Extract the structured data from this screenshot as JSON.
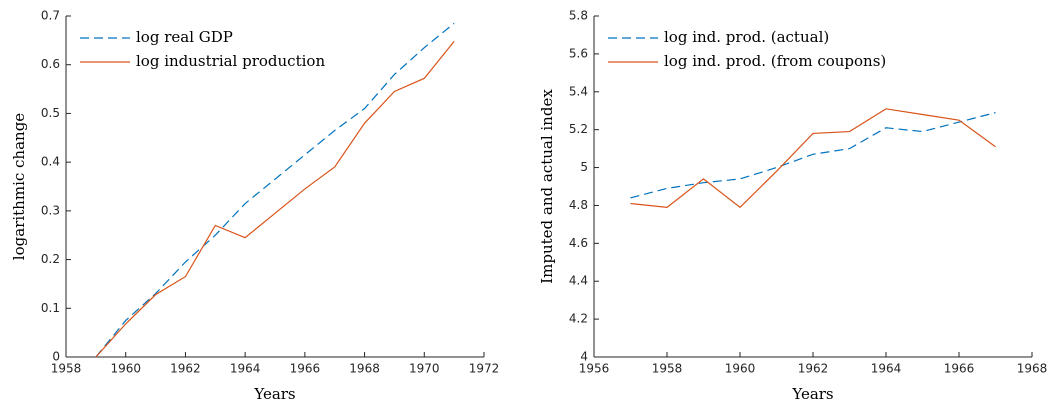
{
  "chart_data": [
    {
      "type": "line",
      "xlabel": "Years",
      "ylabel": "logarithmic change",
      "x": [
        1959,
        1960,
        1961,
        1962,
        1963,
        1964,
        1965,
        1966,
        1967,
        1968,
        1969,
        1970,
        1971
      ],
      "series": [
        {
          "name": "log real GDP",
          "color": "#0072BD",
          "line_style": "dashed",
          "values": [
            0,
            0.075,
            0.13,
            0.195,
            0.25,
            0.315,
            0.365,
            0.415,
            0.465,
            0.51,
            0.58,
            0.635,
            0.685
          ]
        },
        {
          "name": "log industrial production",
          "color": "#D95319",
          "line_style": "solid",
          "values": [
            0,
            0.068,
            0.128,
            0.165,
            0.27,
            0.245,
            0.295,
            0.345,
            0.39,
            0.48,
            0.545,
            0.572,
            0.648
          ]
        }
      ],
      "xlim": [
        1958,
        1972
      ],
      "xticks": [
        1958,
        1960,
        1962,
        1964,
        1966,
        1968,
        1970,
        1972
      ],
      "ylim": [
        0,
        0.7
      ],
      "yticks": [
        0,
        0.1,
        0.2,
        0.3,
        0.4,
        0.5,
        0.6,
        0.7
      ],
      "legend": "upper left",
      "grid": false
    },
    {
      "type": "line",
      "xlabel": "Years",
      "ylabel": "Imputed and actual index",
      "x": [
        1957,
        1958,
        1959,
        1960,
        1961,
        1962,
        1963,
        1964,
        1965,
        1966,
        1967
      ],
      "series": [
        {
          "name": "log ind. prod. (actual)",
          "color": "#0072BD",
          "line_style": "dashed",
          "values": [
            4.84,
            4.89,
            4.92,
            4.94,
            5.0,
            5.07,
            5.1,
            5.21,
            5.19,
            5.24,
            5.29
          ]
        },
        {
          "name": "log ind. prod. (from coupons)",
          "color": "#D95319",
          "line_style": "solid",
          "values": [
            4.81,
            4.79,
            4.94,
            4.79,
            4.98,
            5.18,
            5.19,
            5.31,
            5.28,
            5.25,
            5.11
          ]
        }
      ],
      "xlim": [
        1956,
        1968
      ],
      "xticks": [
        1956,
        1958,
        1960,
        1962,
        1964,
        1966,
        1968
      ],
      "ylim": [
        4,
        5.8
      ],
      "yticks": [
        4,
        4.2,
        4.4,
        4.6,
        4.8,
        5,
        5.2,
        5.4,
        5.6,
        5.8
      ],
      "legend": "upper left",
      "grid": false
    }
  ]
}
